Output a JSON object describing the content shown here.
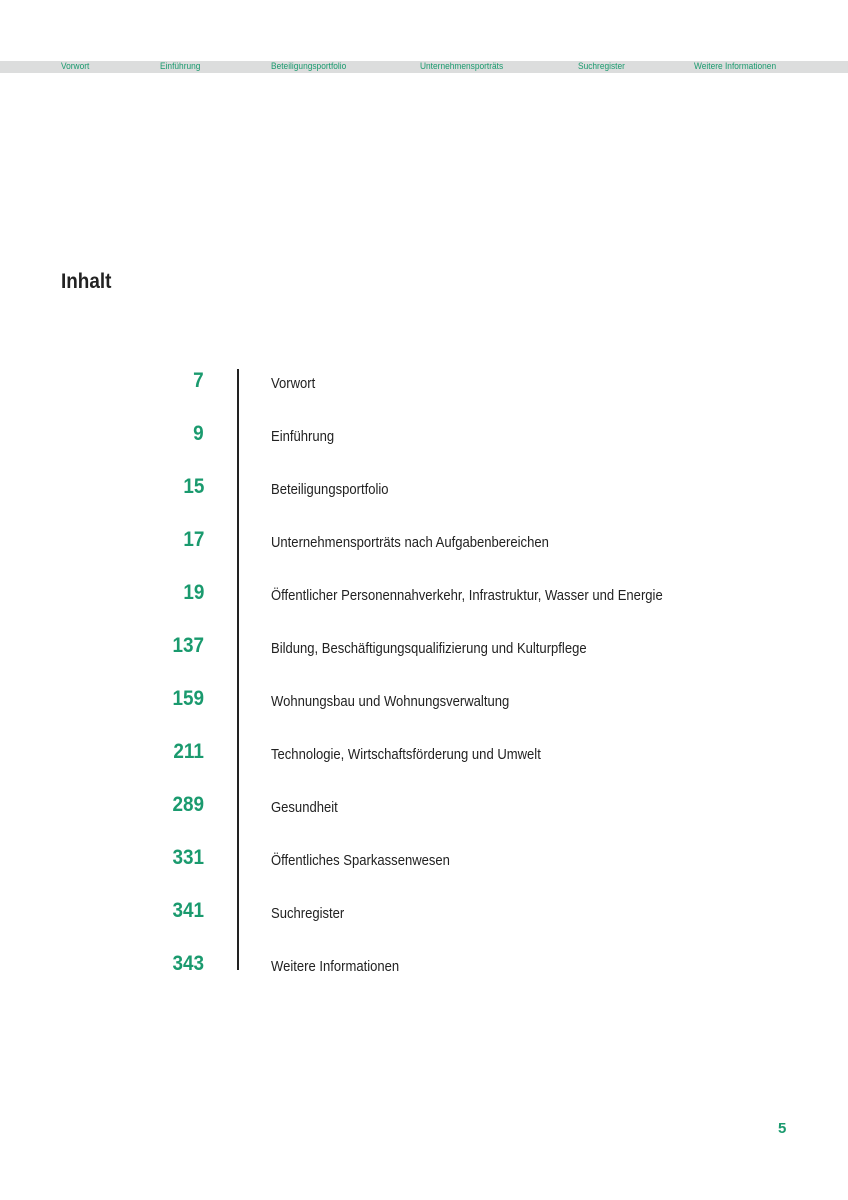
{
  "nav": [
    "Vorwort",
    "Einführung",
    "Beteiligungsportfolio",
    "Unternehmensporträts",
    "Suchregister",
    "Weitere Informationen"
  ],
  "title": "Inhalt",
  "toc": [
    {
      "page": "7",
      "label": "Vorwort"
    },
    {
      "page": "9",
      "label": "Einführung"
    },
    {
      "page": "15",
      "label": "Beteiligungsportfolio"
    },
    {
      "page": "17",
      "label": "Unternehmensporträts nach Aufgabenbereichen"
    },
    {
      "page": "19",
      "label": "Öffentlicher Personennahverkehr, Infrastruktur, Wasser und Energie"
    },
    {
      "page": "137",
      "label": "Bildung, Beschäftigungsqualifizierung und Kulturpflege"
    },
    {
      "page": "159",
      "label": "Wohnungsbau und Wohnungsverwaltung"
    },
    {
      "page": "211",
      "label": "Technologie, Wirtschaftsförderung und Umwelt"
    },
    {
      "page": "289",
      "label": "Gesundheit"
    },
    {
      "page": "331",
      "label": "Öffentliches Sparkassenwesen"
    },
    {
      "page": "341",
      "label": "Suchregister"
    },
    {
      "page": "343",
      "label": "Weitere Informationen"
    }
  ],
  "page_number": "5",
  "colors": {
    "accent": "#1a9a6e",
    "nav_bg": "#dcdddd"
  }
}
